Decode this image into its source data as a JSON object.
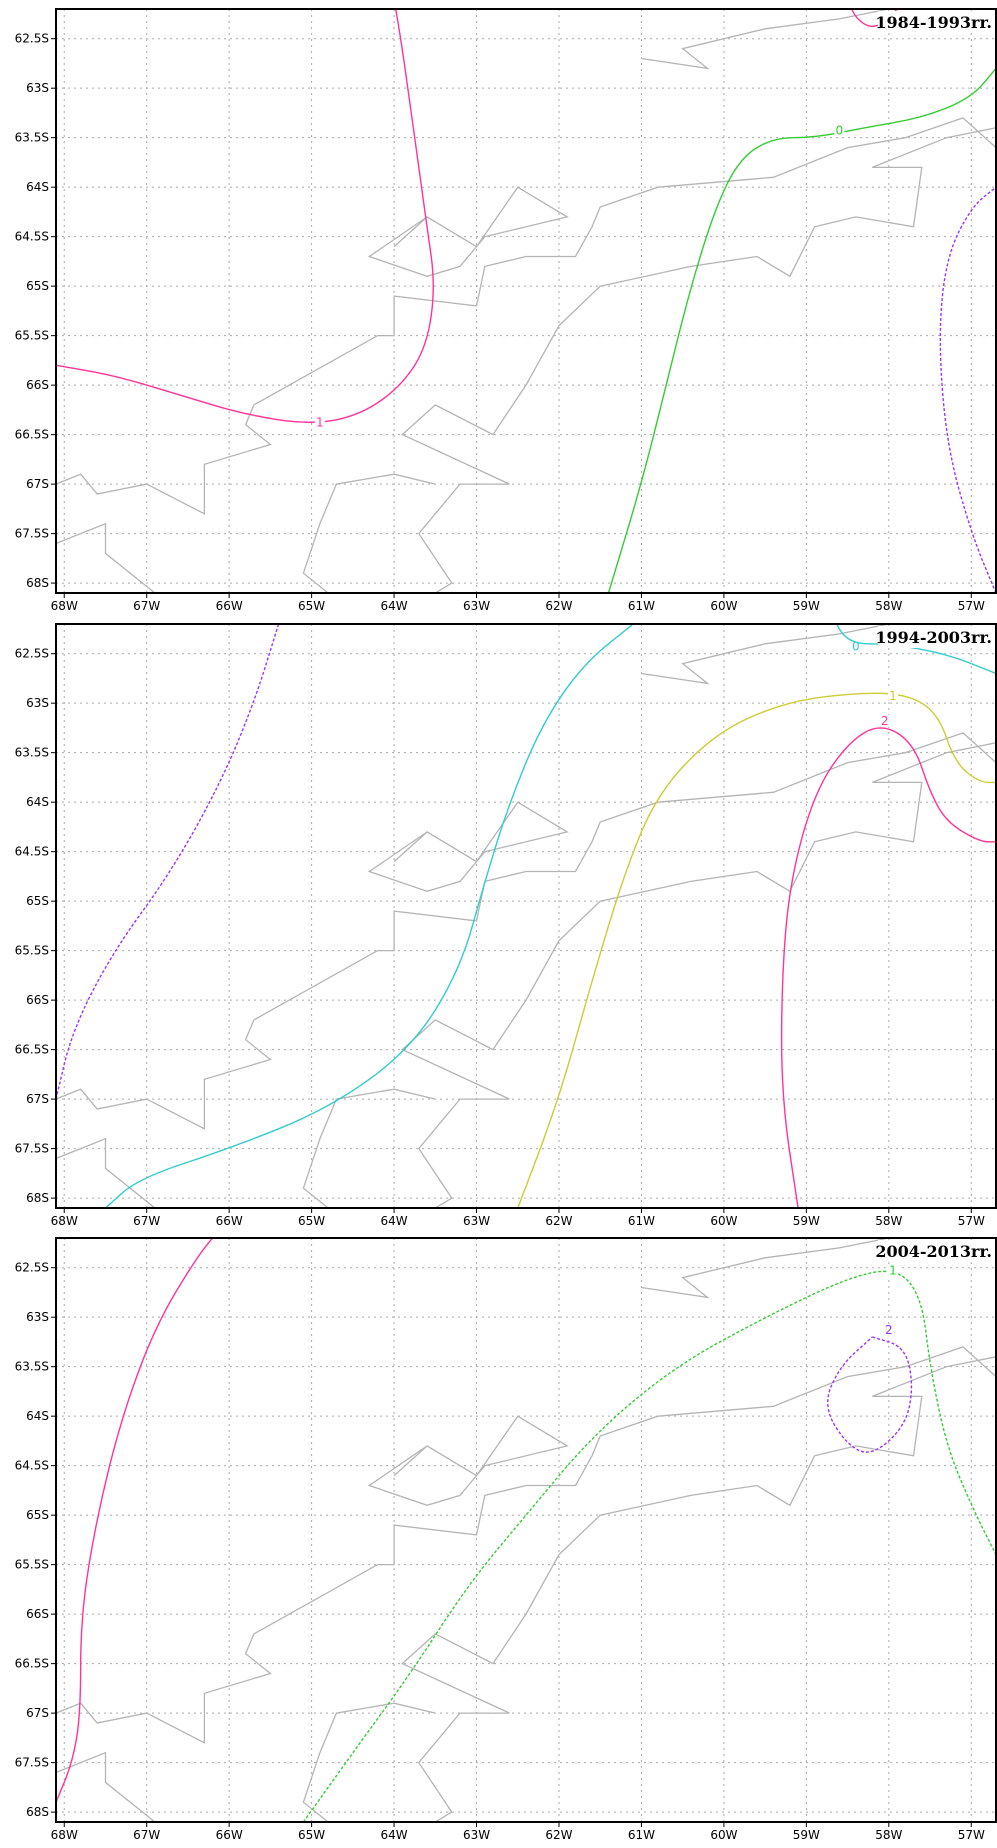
{
  "map": {
    "grid_color": "#aaaaaa",
    "coast_color": "#b4b4b4",
    "lon_ticks": [
      "68W",
      "67W",
      "66W",
      "65W",
      "64W",
      "63W",
      "62W",
      "61W",
      "60W",
      "59W",
      "58W",
      "57W"
    ],
    "lat_ticks": [
      "62.5S",
      "63S",
      "63.5S",
      "64S",
      "64.5S",
      "65S",
      "65.5S",
      "66S",
      "66.5S",
      "67S",
      "67.5S",
      "68S"
    ],
    "lon_range": [
      -68.1,
      -56.7
    ],
    "lat_range": [
      -62.2,
      -68.1
    ],
    "coastline": [
      [
        [
          -68.1,
          -67.0
        ],
        [
          -67.8,
          -66.9
        ],
        [
          -67.6,
          -67.1
        ],
        [
          -67.0,
          -67.0
        ],
        [
          -66.3,
          -67.3
        ],
        [
          -66.3,
          -66.8
        ],
        [
          -65.5,
          -66.6
        ],
        [
          -65.8,
          -66.4
        ],
        [
          -65.7,
          -66.2
        ],
        [
          -64.2,
          -65.5
        ],
        [
          -64.0,
          -65.5
        ],
        [
          -64.0,
          -65.1
        ],
        [
          -63.0,
          -65.2
        ],
        [
          -62.9,
          -64.8
        ],
        [
          -62.4,
          -64.7
        ],
        [
          -61.8,
          -64.7
        ],
        [
          -61.6,
          -64.4
        ],
        [
          -61.5,
          -64.2
        ],
        [
          -60.8,
          -64.0
        ],
        [
          -59.4,
          -63.9
        ],
        [
          -58.5,
          -63.6
        ],
        [
          -57.8,
          -63.5
        ],
        [
          -57.1,
          -63.3
        ],
        [
          -56.7,
          -63.6
        ]
      ],
      [
        [
          -68.1,
          -67.6
        ],
        [
          -67.5,
          -67.4
        ],
        [
          -67.5,
          -67.7
        ],
        [
          -66.9,
          -68.1
        ]
      ],
      [
        [
          -63.5,
          -68.1
        ],
        [
          -63.3,
          -68.0
        ],
        [
          -63.7,
          -67.5
        ],
        [
          -63.2,
          -67.0
        ],
        [
          -62.6,
          -67.0
        ],
        [
          -63.9,
          -66.5
        ],
        [
          -63.5,
          -66.2
        ],
        [
          -62.8,
          -66.5
        ],
        [
          -62.4,
          -66.0
        ],
        [
          -62.0,
          -65.4
        ],
        [
          -61.5,
          -65.0
        ],
        [
          -60.4,
          -64.8
        ],
        [
          -59.6,
          -64.7
        ],
        [
          -59.2,
          -64.9
        ],
        [
          -58.9,
          -64.4
        ],
        [
          -58.4,
          -64.3
        ],
        [
          -57.7,
          -64.4
        ],
        [
          -57.6,
          -63.8
        ],
        [
          -58.2,
          -63.8
        ],
        [
          -57.3,
          -63.5
        ],
        [
          -56.7,
          -63.4
        ]
      ],
      [
        [
          -64.0,
          -64.6
        ],
        [
          -63.6,
          -64.3
        ],
        [
          -63.0,
          -64.6
        ],
        [
          -62.5,
          -64.0
        ],
        [
          -61.9,
          -64.3
        ],
        [
          -62.9,
          -64.5
        ],
        [
          -63.2,
          -64.8
        ],
        [
          -63.6,
          -64.9
        ],
        [
          -64.3,
          -64.7
        ],
        [
          -63.6,
          -64.3
        ]
      ],
      [
        [
          -61.0,
          -62.7
        ],
        [
          -60.2,
          -62.8
        ],
        [
          -60.5,
          -62.6
        ],
        [
          -59.5,
          -62.4
        ],
        [
          -58.6,
          -62.3
        ],
        [
          -58.0,
          -62.2
        ]
      ],
      [
        [
          -64.8,
          -68.1
        ],
        [
          -65.1,
          -67.9
        ],
        [
          -64.9,
          -67.4
        ],
        [
          -64.7,
          -67.0
        ],
        [
          -64.0,
          -66.9
        ],
        [
          -63.5,
          -67.0
        ]
      ]
    ],
    "panels": [
      {
        "title": "1984-1993rr.",
        "contours": [
          {
            "label": "1",
            "color": "#ff3399",
            "dashed": false,
            "label_at": [
              -64.9,
              -66.4
            ],
            "points": [
              [
                -68.1,
                -65.8
              ],
              [
                -67.4,
                -65.9
              ],
              [
                -66.6,
                -66.1
              ],
              [
                -65.8,
                -66.3
              ],
              [
                -65.0,
                -66.4
              ],
              [
                -64.4,
                -66.3
              ],
              [
                -63.9,
                -66.0
              ],
              [
                -63.6,
                -65.6
              ],
              [
                -63.5,
                -65.0
              ],
              [
                -63.6,
                -64.4
              ],
              [
                -63.7,
                -63.8
              ],
              [
                -63.8,
                -63.2
              ],
              [
                -63.9,
                -62.6
              ],
              [
                -64.0,
                -62.1
              ]
            ]
          },
          {
            "label": "1",
            "color": "#ff3399",
            "dashed": false,
            "points": [
              [
                -58.5,
                -62.1
              ],
              [
                -58.4,
                -62.3
              ],
              [
                -58.2,
                -62.4
              ],
              [
                -58.0,
                -62.3
              ],
              [
                -57.8,
                -62.1
              ]
            ]
          },
          {
            "label": "0",
            "color": "#33cc33",
            "dashed": false,
            "label_at": [
              -58.6,
              -63.45
            ],
            "points": [
              [
                -61.4,
                -68.1
              ],
              [
                -61.0,
                -67.0
              ],
              [
                -60.7,
                -66.0
              ],
              [
                -60.4,
                -65.0
              ],
              [
                -60.1,
                -64.2
              ],
              [
                -59.8,
                -63.7
              ],
              [
                -59.4,
                -63.5
              ],
              [
                -58.9,
                -63.5
              ],
              [
                -58.3,
                -63.4
              ],
              [
                -57.6,
                -63.3
              ],
              [
                -57.0,
                -63.1
              ],
              [
                -56.7,
                -62.8
              ]
            ]
          },
          {
            "label": "",
            "color": "#9933ff",
            "dashed": true,
            "points": [
              [
                -56.7,
                -68.1
              ],
              [
                -57.0,
                -67.5
              ],
              [
                -57.3,
                -66.6
              ],
              [
                -57.4,
                -65.5
              ],
              [
                -57.3,
                -64.7
              ],
              [
                -57.0,
                -64.2
              ],
              [
                -56.7,
                -64.0
              ]
            ]
          }
        ]
      },
      {
        "title": "1994-2003rr.",
        "contours": [
          {
            "label": "",
            "color": "#9933ff",
            "dashed": true,
            "points": [
              [
                -68.1,
                -67.0
              ],
              [
                -67.9,
                -66.3
              ],
              [
                -67.4,
                -65.5
              ],
              [
                -66.7,
                -64.7
              ],
              [
                -66.1,
                -63.8
              ],
              [
                -65.7,
                -63.0
              ],
              [
                -65.4,
                -62.2
              ]
            ]
          },
          {
            "label": "0",
            "color": "#33cccc",
            "dashed": false,
            "label_at": [
              -58.4,
              -62.45
            ],
            "points": [
              [
                -67.5,
                -68.1
              ],
              [
                -67.1,
                -67.8
              ],
              [
                -66.0,
                -67.5
              ],
              [
                -64.8,
                -67.1
              ],
              [
                -63.8,
                -66.5
              ],
              [
                -63.2,
                -65.7
              ],
              [
                -62.9,
                -64.8
              ],
              [
                -62.6,
                -64.0
              ],
              [
                -62.2,
                -63.2
              ],
              [
                -61.7,
                -62.6
              ],
              [
                -61.1,
                -62.2
              ]
            ]
          },
          {
            "label": "0",
            "color": "#33cccc",
            "dashed": false,
            "points": [
              [
                -58.7,
                -62.1
              ],
              [
                -58.5,
                -62.4
              ],
              [
                -58.0,
                -62.4
              ],
              [
                -57.3,
                -62.5
              ],
              [
                -56.7,
                -62.7
              ]
            ]
          },
          {
            "label": "1",
            "color": "#cccc33",
            "dashed": false,
            "label_at": [
              -57.95,
              -62.95
            ],
            "points": [
              [
                -62.5,
                -68.1
              ],
              [
                -62.0,
                -67.0
              ],
              [
                -61.6,
                -65.8
              ],
              [
                -61.2,
                -64.7
              ],
              [
                -60.8,
                -63.9
              ],
              [
                -60.1,
                -63.3
              ],
              [
                -59.3,
                -63.0
              ],
              [
                -58.5,
                -62.9
              ],
              [
                -57.8,
                -62.9
              ],
              [
                -57.4,
                -63.1
              ],
              [
                -57.2,
                -63.6
              ],
              [
                -56.9,
                -63.8
              ],
              [
                -56.7,
                -63.8
              ]
            ]
          },
          {
            "label": "2",
            "color": "#ff3399",
            "dashed": false,
            "label_at": [
              -58.05,
              -63.2
            ],
            "points": [
              [
                -59.1,
                -68.1
              ],
              [
                -59.3,
                -67.0
              ],
              [
                -59.3,
                -65.8
              ],
              [
                -59.2,
                -64.8
              ],
              [
                -58.9,
                -63.9
              ],
              [
                -58.5,
                -63.4
              ],
              [
                -58.1,
                -63.2
              ],
              [
                -57.7,
                -63.4
              ],
              [
                -57.5,
                -63.9
              ],
              [
                -57.3,
                -64.2
              ],
              [
                -56.9,
                -64.4
              ],
              [
                -56.7,
                -64.4
              ]
            ]
          }
        ]
      },
      {
        "title": "2004-2013rr.",
        "contours": [
          {
            "label": "",
            "color": "#ff3399",
            "dashed": false,
            "points": [
              [
                -68.1,
                -67.9
              ],
              [
                -67.9,
                -67.5
              ],
              [
                -67.8,
                -67.0
              ],
              [
                -67.8,
                -66.0
              ],
              [
                -67.6,
                -65.0
              ],
              [
                -67.3,
                -64.0
              ],
              [
                -66.9,
                -63.1
              ],
              [
                -66.4,
                -62.4
              ],
              [
                -66.1,
                -62.1
              ]
            ]
          },
          {
            "label": "1",
            "color": "#33cc33",
            "dashed": true,
            "label_at": [
              -57.95,
              -62.55
            ],
            "points": [
              [
                -65.1,
                -68.1
              ],
              [
                -64.5,
                -67.4
              ],
              [
                -63.8,
                -66.6
              ],
              [
                -63.1,
                -65.7
              ],
              [
                -62.4,
                -65.0
              ],
              [
                -61.6,
                -64.2
              ],
              [
                -60.6,
                -63.5
              ],
              [
                -59.5,
                -63.0
              ],
              [
                -58.5,
                -62.6
              ],
              [
                -57.9,
                -62.5
              ],
              [
                -57.6,
                -62.8
              ],
              [
                -57.5,
                -63.5
              ],
              [
                -57.3,
                -64.3
              ],
              [
                -57.0,
                -64.9
              ],
              [
                -56.7,
                -65.4
              ]
            ]
          },
          {
            "label": "2",
            "color": "#9933ff",
            "dashed": true,
            "label_at": [
              -58.0,
              -63.15
            ],
            "points": [
              [
                -58.2,
                -63.2
              ],
              [
                -57.8,
                -63.3
              ],
              [
                -57.7,
                -63.7
              ],
              [
                -57.8,
                -64.1
              ],
              [
                -58.2,
                -64.4
              ],
              [
                -58.5,
                -64.3
              ],
              [
                -58.8,
                -63.9
              ],
              [
                -58.6,
                -63.5
              ],
              [
                -58.2,
                -63.2
              ]
            ]
          }
        ]
      }
    ]
  }
}
